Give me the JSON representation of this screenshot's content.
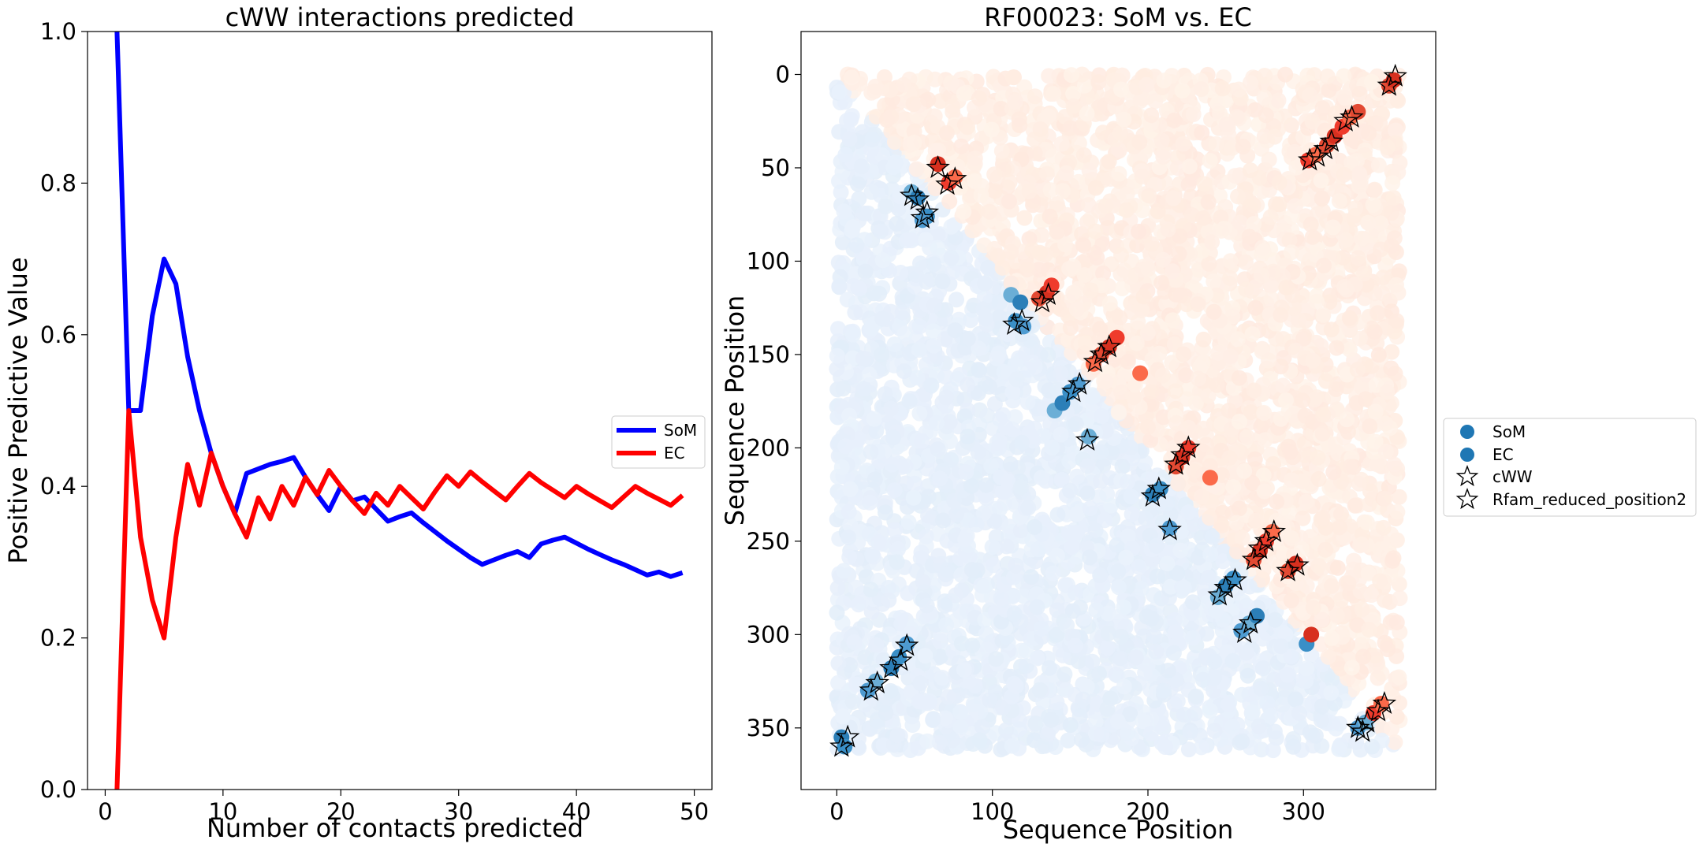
{
  "chart_data": [
    {
      "type": "line",
      "title": "cWW interactions predicted",
      "xlabel": "Number of contacts predicted",
      "ylabel": "Positive Predictive Value",
      "xlim": [
        -1.5,
        51.5
      ],
      "ylim": [
        0,
        1.0
      ],
      "xticks": [
        0,
        10,
        20,
        30,
        40,
        50
      ],
      "yticks": [
        0.0,
        0.2,
        0.4,
        0.6,
        0.8,
        1.0
      ],
      "ytick_labels": [
        "0.0",
        "0.2",
        "0.4",
        "0.6",
        "0.8",
        "1.0"
      ],
      "legend_position": "center-right",
      "grid": false,
      "series": [
        {
          "name": "SoM",
          "color": "#0000ff",
          "x": [
            1,
            2,
            3,
            4,
            5,
            6,
            7,
            8,
            9,
            10,
            11,
            12,
            13,
            14,
            15,
            16,
            17,
            18,
            19,
            20,
            21,
            22,
            23,
            24,
            25,
            26,
            27,
            28,
            29,
            30,
            31,
            32,
            33,
            34,
            35,
            36,
            37,
            38,
            39,
            40,
            41,
            42,
            43,
            44,
            45,
            46,
            47,
            48,
            49
          ],
          "y": [
            1.0,
            0.5,
            0.5,
            0.625,
            0.7,
            0.667,
            0.571,
            0.5,
            0.444,
            0.4,
            0.364,
            0.417,
            0.423,
            0.429,
            0.433,
            0.438,
            0.412,
            0.389,
            0.368,
            0.4,
            0.381,
            0.386,
            0.37,
            0.354,
            0.36,
            0.365,
            0.352,
            0.34,
            0.328,
            0.317,
            0.306,
            0.297,
            0.303,
            0.309,
            0.314,
            0.306,
            0.324,
            0.329,
            0.333,
            0.325,
            0.317,
            0.31,
            0.303,
            0.297,
            0.29,
            0.283,
            0.287,
            0.281,
            0.286
          ]
        },
        {
          "name": "EC",
          "color": "#ff0000",
          "x": [
            1,
            2,
            3,
            4,
            5,
            6,
            7,
            8,
            9,
            10,
            11,
            12,
            13,
            14,
            15,
            16,
            17,
            18,
            19,
            20,
            21,
            22,
            23,
            24,
            25,
            26,
            27,
            28,
            29,
            30,
            31,
            32,
            33,
            34,
            35,
            36,
            37,
            38,
            39,
            40,
            41,
            42,
            43,
            44,
            45,
            46,
            47,
            48,
            49
          ],
          "y": [
            0.0,
            0.5,
            0.333,
            0.25,
            0.2,
            0.333,
            0.429,
            0.375,
            0.444,
            0.4,
            0.364,
            0.333,
            0.385,
            0.357,
            0.4,
            0.375,
            0.412,
            0.389,
            0.421,
            0.4,
            0.381,
            0.364,
            0.391,
            0.375,
            0.4,
            0.385,
            0.37,
            0.393,
            0.414,
            0.4,
            0.419,
            0.406,
            0.394,
            0.382,
            0.4,
            0.417,
            0.405,
            0.395,
            0.385,
            0.4,
            0.39,
            0.381,
            0.372,
            0.386,
            0.4,
            0.391,
            0.383,
            0.375,
            0.388
          ]
        }
      ]
    },
    {
      "type": "scatter",
      "title": "RF00023: SoM vs. EC",
      "xlabel": "Sequence Position",
      "ylabel": "Sequence Position",
      "xlim": [
        -23,
        385
      ],
      "ylim": [
        383,
        -23
      ],
      "y_inverted": true,
      "xticks": [
        0,
        100,
        200,
        300
      ],
      "yticks": [
        0,
        50,
        100,
        150,
        200,
        250,
        300,
        350
      ],
      "grid": false,
      "legend_position": "outside-right",
      "background_max_position": 362,
      "series": [
        {
          "name": "SoM",
          "color": "#1f77b4",
          "marker": "circle",
          "region": "lower-triangle",
          "strong_points": [
            [
              3,
              355
            ],
            [
              5,
              360
            ],
            [
              20,
              330
            ],
            [
              25,
              325
            ],
            [
              35,
              318
            ],
            [
              40,
              312
            ],
            [
              45,
              305
            ],
            [
              48,
              63
            ],
            [
              52,
              66
            ],
            [
              58,
              76
            ],
            [
              55,
              78
            ],
            [
              112,
              118
            ],
            [
              118,
              122
            ],
            [
              115,
              132
            ],
            [
              120,
              135
            ],
            [
              140,
              180
            ],
            [
              145,
              176
            ],
            [
              150,
              170
            ],
            [
              155,
              166
            ],
            [
              162,
              194
            ],
            [
              203,
              225
            ],
            [
              208,
              222
            ],
            [
              214,
              243
            ],
            [
              245,
              280
            ],
            [
              250,
              274
            ],
            [
              255,
              270
            ],
            [
              260,
              298
            ],
            [
              265,
              294
            ],
            [
              270,
              290
            ],
            [
              302,
              305
            ],
            [
              335,
              350
            ],
            [
              340,
              347
            ]
          ]
        },
        {
          "name": "EC",
          "color": "#1f77b4",
          "marker": "circle",
          "region": "upper-triangle",
          "strong_points": [
            [
              65,
              48
            ],
            [
              72,
              58
            ],
            [
              76,
              55
            ],
            [
              130,
              120
            ],
            [
              135,
              117
            ],
            [
              138,
              113
            ],
            [
              165,
              155
            ],
            [
              170,
              150
            ],
            [
              175,
              146
            ],
            [
              180,
              141
            ],
            [
              195,
              160
            ],
            [
              218,
              210
            ],
            [
              222,
              205
            ],
            [
              226,
              200
            ],
            [
              240,
              216
            ],
            [
              268,
              260
            ],
            [
              272,
              255
            ],
            [
              276,
              250
            ],
            [
              280,
              245
            ],
            [
              290,
              266
            ],
            [
              295,
              262
            ],
            [
              303,
              46
            ],
            [
              308,
              43
            ],
            [
              315,
              38
            ],
            [
              320,
              33
            ],
            [
              325,
              28
            ],
            [
              330,
              23
            ],
            [
              335,
              20
            ],
            [
              305,
              300
            ],
            [
              345,
              342
            ],
            [
              350,
              337
            ],
            [
              355,
              6
            ],
            [
              358,
              3
            ]
          ]
        },
        {
          "name": "cWW",
          "marker": "star",
          "points": [
            [
              3,
              360
            ],
            [
              7,
              355
            ],
            [
              22,
              330
            ],
            [
              26,
              326
            ],
            [
              35,
              318
            ],
            [
              41,
              314
            ],
            [
              45,
              306
            ],
            [
              48,
              65
            ],
            [
              52,
              67
            ],
            [
              55,
              77
            ],
            [
              58,
              74
            ],
            [
              65,
              50
            ],
            [
              71,
              59
            ],
            [
              76,
              56
            ],
            [
              132,
              122
            ],
            [
              136,
              118
            ],
            [
              114,
              134
            ],
            [
              119,
              132
            ],
            [
              152,
              170
            ],
            [
              156,
              166
            ],
            [
              161,
              196
            ],
            [
              166,
              154
            ],
            [
              170,
              150
            ],
            [
              175,
              146
            ],
            [
              203,
              226
            ],
            [
              207,
              222
            ],
            [
              214,
              244
            ],
            [
              218,
              209
            ],
            [
              222,
              204
            ],
            [
              226,
              200
            ],
            [
              246,
              279
            ],
            [
              250,
              275
            ],
            [
              256,
              271
            ],
            [
              262,
              299
            ],
            [
              266,
              294
            ],
            [
              268,
              260
            ],
            [
              272,
              254
            ],
            [
              276,
              250
            ],
            [
              281,
              245
            ],
            [
              290,
              266
            ],
            [
              296,
              263
            ],
            [
              304,
              46
            ],
            [
              309,
              44
            ],
            [
              314,
              40
            ],
            [
              318,
              36
            ],
            [
              327,
              25
            ],
            [
              331,
              23
            ],
            [
              335,
              350
            ],
            [
              338,
              352
            ],
            [
              341,
              347
            ],
            [
              348,
              341
            ],
            [
              352,
              337
            ],
            [
              355,
              6
            ],
            [
              359,
              1
            ]
          ]
        },
        {
          "name": "Rfam_reduced_position2",
          "marker": "star",
          "points": []
        }
      ]
    }
  ]
}
